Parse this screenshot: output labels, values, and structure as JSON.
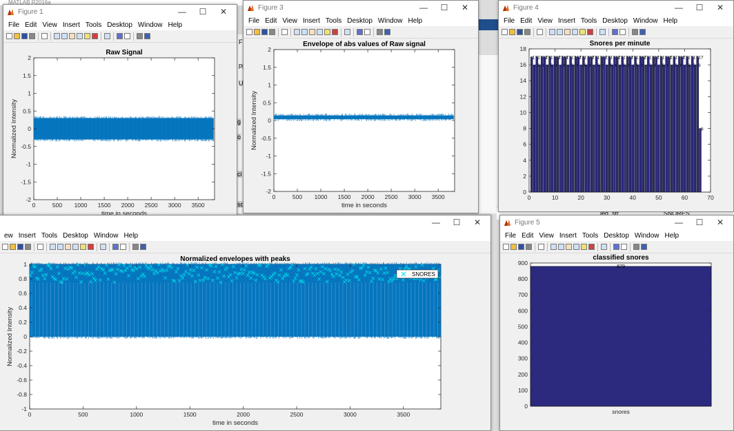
{
  "desktop": {
    "app_title": "MATLAB R2016a",
    "bg_labels": [
      "F",
      "A",
      "pps",
      "Ur",
      "g",
      "o",
      "ci",
      "sd",
      "leg_str",
      "'SNORES'"
    ]
  },
  "common": {
    "menu": [
      "File",
      "Edit",
      "View",
      "Insert",
      "Tools",
      "Desktop",
      "Window",
      "Help"
    ],
    "window_controls": {
      "minimize": "—",
      "maximize": "☐",
      "close": "✕"
    },
    "toolbar_icons": [
      "new-figure-icon",
      "open-file-icon",
      "save-icon",
      "print-icon",
      "sep",
      "edit-plot-arrow-icon",
      "sep",
      "zoom-in-icon",
      "zoom-out-icon",
      "pan-hand-icon",
      "rotate-3d-icon",
      "data-cursor-icon",
      "brush-icon",
      "sep",
      "link-plot-icon",
      "sep",
      "colorbar-icon",
      "legend-icon",
      "sep",
      "hide-plot-tools-icon",
      "show-plot-tools-icon"
    ]
  },
  "figures": [
    {
      "id": "fig1",
      "title": "Figure 1",
      "menu": [
        "File",
        "Edit",
        "View",
        "Insert",
        "Tools",
        "Desktop",
        "Window",
        "Help"
      ]
    },
    {
      "id": "fig3",
      "title": "Figure 3",
      "menu": [
        "File",
        "Edit",
        "View",
        "Insert",
        "Tools",
        "Desktop",
        "Window",
        "Help"
      ]
    },
    {
      "id": "fig4",
      "title": "Figure 4",
      "menu": [
        "File",
        "Edit",
        "View",
        "Insert",
        "Tools",
        "Desktop",
        "Window",
        "Help"
      ]
    },
    {
      "id": "fig2",
      "title": "",
      "menu": [
        "ew",
        "Insert",
        "Tools",
        "Desktop",
        "Window",
        "Help"
      ]
    },
    {
      "id": "fig5",
      "title": "Figure 5",
      "menu": [
        "File",
        "Edit",
        "View",
        "Insert",
        "Tools",
        "Desktop",
        "Window",
        "Help"
      ]
    }
  ],
  "chart_data": [
    {
      "id": "raw",
      "type": "line",
      "title": "Raw Signal",
      "xlabel": "time in seconds",
      "ylabel": "Normalized Intensity",
      "xlim": [
        0,
        3850
      ],
      "ylim": [
        -2,
        2
      ],
      "xticks": [
        "0",
        "500",
        "1000",
        "1500",
        "2000",
        "2500",
        "3000",
        "3500"
      ],
      "yticks": [
        "-2",
        "-1.5",
        "-1",
        "-0.5",
        "0",
        "0.5",
        "1",
        "1.5",
        "2"
      ],
      "signal_band": [
        -0.3,
        0.3
      ],
      "color": "#0072bd"
    },
    {
      "id": "env",
      "type": "line",
      "title": "Envelope of abs values of Raw signal",
      "xlabel": "time in seconds",
      "ylabel": "Normalized Intensity",
      "xlim": [
        0,
        3850
      ],
      "ylim": [
        -2,
        2
      ],
      "xticks": [
        "0",
        "500",
        "1000",
        "1500",
        "2000",
        "2500",
        "3000",
        "3500"
      ],
      "yticks": [
        "-2",
        "-1.5",
        "-1",
        "-0.5",
        "0",
        "0.5",
        "1",
        "1.5",
        "2"
      ],
      "signal_band": [
        0.04,
        0.14
      ],
      "color": "#0072bd"
    },
    {
      "id": "spm",
      "type": "bar",
      "title": "Snores per minute",
      "xlim": [
        0,
        70
      ],
      "ylim": [
        0,
        18
      ],
      "xticks": [
        "0",
        "10",
        "20",
        "30",
        "40",
        "50",
        "60",
        "70"
      ],
      "yticks": [
        "0",
        "2",
        "4",
        "6",
        "8",
        "10",
        "12",
        "14",
        "16",
        "18"
      ],
      "values": [
        17,
        16,
        17,
        16,
        17,
        17,
        16,
        17,
        16,
        17,
        17,
        16,
        17,
        17,
        16,
        17,
        16,
        17,
        17,
        16,
        17,
        16,
        17,
        17,
        16,
        17,
        16,
        17,
        17,
        16,
        17,
        16,
        17,
        17,
        16,
        17,
        16,
        17,
        17,
        16,
        17,
        16,
        17,
        17,
        16,
        17,
        16,
        17,
        17,
        16,
        17,
        16,
        17,
        17,
        16,
        17,
        16,
        17,
        17,
        16,
        17,
        16,
        17,
        16,
        17,
        8
      ],
      "labels": [
        "17",
        "16",
        "17",
        "16",
        "17",
        "17",
        "16",
        "17",
        "16",
        "17",
        "17",
        "16",
        "17",
        "17",
        "16",
        "17",
        "16",
        "17",
        "17",
        "16",
        "17",
        "16",
        "17",
        "17",
        "16",
        "17",
        "16",
        "17",
        "17",
        "16",
        "17",
        "16",
        "17",
        "17",
        "16",
        "17",
        "16",
        "17",
        "17",
        "16",
        "17",
        "16",
        "17",
        "17",
        "16",
        "17",
        "16",
        "17",
        "17",
        "16",
        "17",
        "16",
        "17",
        "17",
        "16",
        "17",
        "16",
        "17",
        "17",
        "16",
        "17",
        "16",
        "17",
        "16",
        "17",
        "8"
      ],
      "color": "#2b2a7e"
    },
    {
      "id": "envpk",
      "type": "line",
      "title": "Normalized envelopes with peaks",
      "xlabel": "time in seconds",
      "ylabel": "Normalized Intensity",
      "xlim": [
        0,
        3850
      ],
      "ylim": [
        -1,
        1
      ],
      "xticks": [
        "0",
        "500",
        "1000",
        "1500",
        "2000",
        "2500",
        "3000",
        "3500"
      ],
      "yticks": [
        "-1",
        "-0.8",
        "-0.6",
        "-0.4",
        "-0.2",
        "0",
        "0.2",
        "0.4",
        "0.6",
        "0.8",
        "1"
      ],
      "signal_band": [
        0,
        1
      ],
      "peak_band": [
        0.75,
        1.0
      ],
      "legend": {
        "entries": [
          "SNORES"
        ],
        "location": "top-right"
      },
      "color": "#0072bd",
      "peak_color": "#00e5ee"
    },
    {
      "id": "cls",
      "type": "bar",
      "title": "classified snores",
      "categories": [
        "snores"
      ],
      "values": [
        879
      ],
      "labels": [
        "879"
      ],
      "ylim": [
        0,
        900
      ],
      "yticks": [
        "0",
        "100",
        "200",
        "300",
        "400",
        "500",
        "600",
        "700",
        "800",
        "900"
      ],
      "color": "#2b2a7e"
    }
  ]
}
